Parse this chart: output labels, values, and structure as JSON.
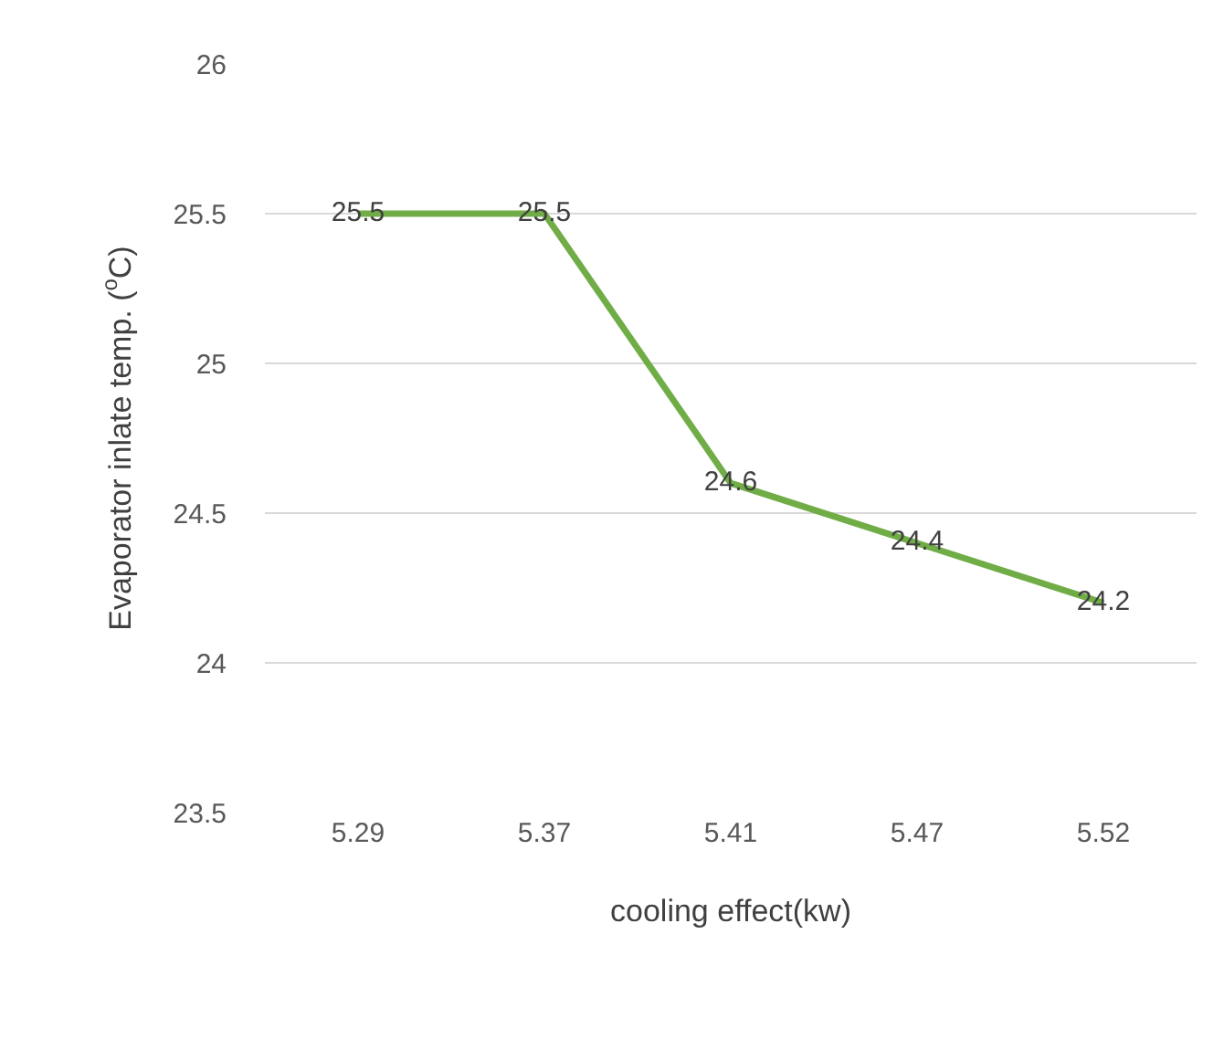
{
  "chart_data": {
    "type": "line",
    "xlabel": "cooling effect(kw)",
    "ylabel": "Evaporator inlate temp. ($^{o}$C)",
    "categories": [
      "5.29",
      "5.37",
      "5.41",
      "5.47",
      "5.52"
    ],
    "series": [
      {
        "color": "#70ad47",
        "values": [
          25.5,
          25.5,
          24.6,
          24.4,
          24.2
        ]
      }
    ],
    "ylim": [
      23.5,
      26
    ],
    "yticks": [
      23.5,
      24,
      24.5,
      25,
      25.5,
      26
    ],
    "grid": "y",
    "data_labels": true,
    "marker": "none",
    "line_style": "solid"
  }
}
